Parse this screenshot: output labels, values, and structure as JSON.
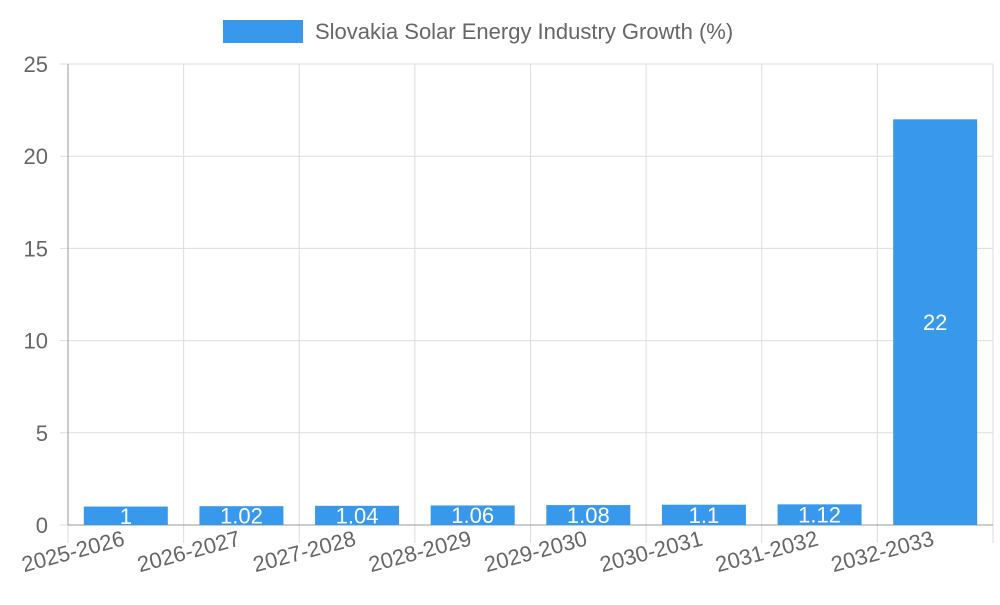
{
  "colors": {
    "bar": "#3899ec",
    "grid": "#dddddd",
    "axis": "#999999",
    "text": "#666666",
    "bar_label": "#ffffff"
  },
  "chart_data": {
    "type": "bar",
    "title": "",
    "legend": {
      "position": "top",
      "entries": [
        "Slovakia Solar Energy Industry Growth (%)"
      ]
    },
    "categories": [
      "2025-2026",
      "2026-2027",
      "2027-2028",
      "2028-2029",
      "2029-2030",
      "2030-2031",
      "2031-2032",
      "2032-2033"
    ],
    "series": [
      {
        "name": "Slovakia Solar Energy Industry Growth (%)",
        "values": [
          1,
          1.02,
          1.04,
          1.06,
          1.08,
          1.1,
          1.12,
          22
        ],
        "data_labels": [
          "1",
          "1.02",
          "1.04",
          "1.06",
          "1.08",
          "1.1",
          "1.12",
          "22"
        ]
      }
    ],
    "xlabel": "",
    "ylabel": "",
    "ylim": [
      0,
      25
    ],
    "yticks": [
      0,
      5,
      10,
      15,
      20,
      25
    ],
    "ytick_labels": [
      "0",
      "5",
      "10",
      "15",
      "20",
      "25"
    ],
    "grid": true
  }
}
